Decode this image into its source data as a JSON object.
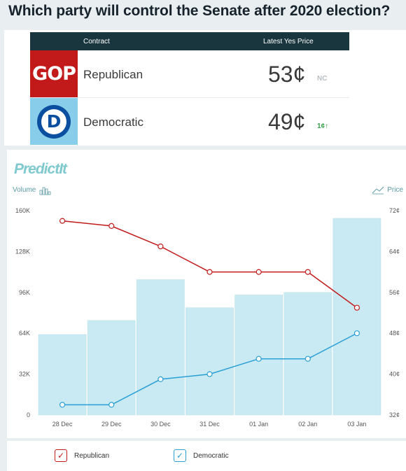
{
  "question": "Which party will control the Senate after 2020 election?",
  "market": {
    "header": {
      "contract": "Contract",
      "price": "Latest Yes Price"
    },
    "rows": [
      {
        "logo": "GOP",
        "name": "Republican",
        "price": "53¢",
        "change": "NC"
      },
      {
        "logo": "D",
        "name": "Democratic",
        "price": "49¢",
        "change": "1¢↑"
      }
    ]
  },
  "brand": "PredictIt",
  "axis": {
    "left_title": "Volume",
    "right_title": "Price"
  },
  "legend": [
    {
      "label": "Republican",
      "check": "✓"
    },
    {
      "label": "Democratic",
      "check": "✓"
    }
  ],
  "colors": {
    "republican": "#c21a1a",
    "democratic": "#2a9fd6",
    "volume": "#c9eaf2",
    "header": "#19363f"
  },
  "chart_data": {
    "type": "bar",
    "categories": [
      "28 Dec",
      "29 Dec",
      "30 Dec",
      "31 Dec",
      "01 Jan",
      "02 Jan",
      "03 Jan"
    ],
    "volume": [
      63000,
      74000,
      106000,
      84000,
      94000,
      96000,
      154000
    ],
    "volume_ylim": [
      0,
      160000
    ],
    "volume_ticks": [
      "0",
      "32K",
      "64K",
      "96K",
      "128K",
      "160K"
    ],
    "price_ylim": [
      32,
      72
    ],
    "price_ticks": [
      "32¢",
      "40¢",
      "48¢",
      "56¢",
      "64¢",
      "72¢"
    ],
    "series": [
      {
        "name": "Republican",
        "type": "line",
        "values": [
          70,
          69,
          65,
          60,
          60,
          60,
          53
        ]
      },
      {
        "name": "Democratic",
        "type": "line",
        "values": [
          34,
          34,
          39,
          40,
          43,
          43,
          48
        ]
      }
    ]
  }
}
